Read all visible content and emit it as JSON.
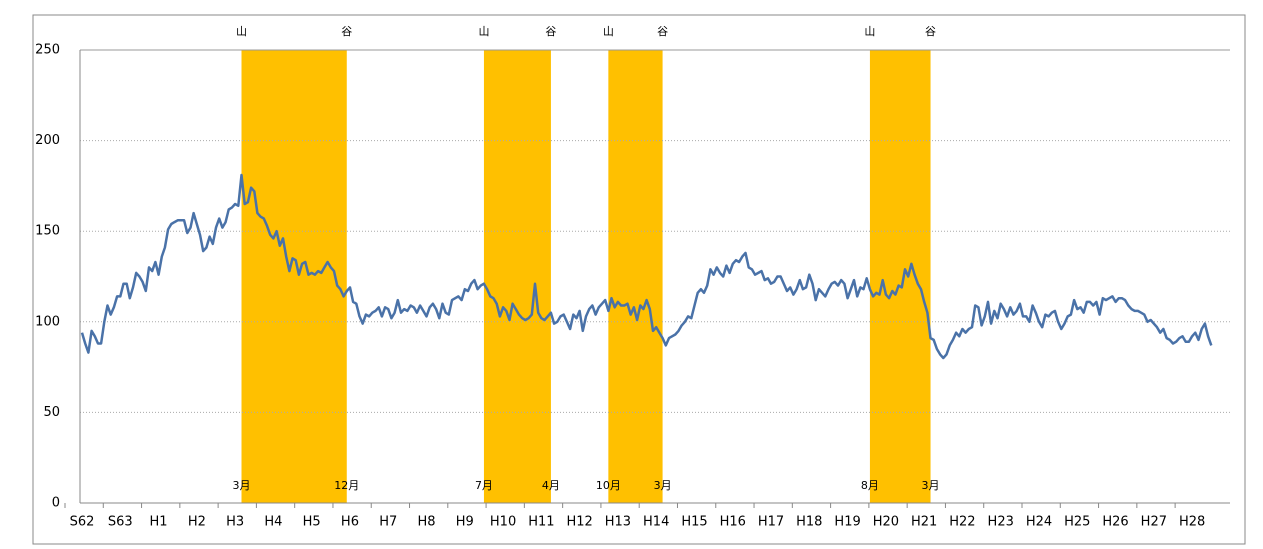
{
  "chart_data": {
    "type": "line",
    "color": "#4a72a8",
    "categories": [
      "S62",
      null,
      null,
      null,
      null,
      null,
      null,
      null,
      null,
      null,
      null,
      null,
      "S63",
      null,
      null,
      null,
      null,
      null,
      null,
      null,
      null,
      null,
      null,
      null,
      "H1",
      null,
      null,
      null,
      null,
      null,
      null,
      null,
      null,
      null,
      null,
      null,
      "H2",
      null,
      null,
      null,
      null,
      null,
      null,
      null,
      null,
      null,
      null,
      null,
      "H3",
      null,
      null,
      null,
      null,
      null,
      null,
      null,
      null,
      null,
      null,
      null,
      "H4",
      null,
      null,
      null,
      null,
      null,
      null,
      null,
      null,
      null,
      null,
      null,
      "H5",
      null,
      null,
      null,
      null,
      null,
      null,
      null,
      null,
      null,
      null,
      null,
      "H6",
      null,
      null,
      null,
      null,
      null,
      null,
      null,
      null,
      null,
      null,
      null,
      "H7",
      null,
      null,
      null,
      null,
      null,
      null,
      null,
      null,
      null,
      null,
      null,
      "H8",
      null,
      null,
      null,
      null,
      null,
      null,
      null,
      null,
      null,
      null,
      null,
      "H9",
      null,
      null,
      null,
      null,
      null,
      null,
      null,
      null,
      null,
      null,
      null,
      "H10",
      null,
      null,
      null,
      null,
      null,
      null,
      null,
      null,
      null,
      null,
      null,
      "H11",
      null,
      null,
      null,
      null,
      null,
      null,
      null,
      null,
      null,
      null,
      null,
      "H12",
      null,
      null,
      null,
      null,
      null,
      null,
      null,
      null,
      null,
      null,
      null,
      "H13",
      null,
      null,
      null,
      null,
      null,
      null,
      null,
      null,
      null,
      null,
      null,
      "H14",
      null,
      null,
      null,
      null,
      null,
      null,
      null,
      null,
      null,
      null,
      null,
      "H15",
      null,
      null,
      null,
      null,
      null,
      null,
      null,
      null,
      null,
      null,
      null,
      "H16",
      null,
      null,
      null,
      null,
      null,
      null,
      null,
      null,
      null,
      null,
      null,
      "H17",
      null,
      null,
      null,
      null,
      null,
      null,
      null,
      null,
      null,
      null,
      null,
      "H18",
      null,
      null,
      null,
      null,
      null,
      null,
      null,
      null,
      null,
      null,
      null,
      "H19",
      null,
      null,
      null,
      null,
      null,
      null,
      null,
      null,
      null,
      null,
      null,
      "H20",
      null,
      null,
      null,
      null,
      null,
      null,
      null,
      null,
      null,
      null,
      null,
      "H21",
      null,
      null,
      null,
      null,
      null,
      null,
      null,
      null,
      null,
      null,
      null,
      "H22",
      null,
      null,
      null,
      null,
      null,
      null,
      null,
      null,
      null,
      null,
      null,
      "H23",
      null,
      null,
      null,
      null,
      null,
      null,
      null,
      null,
      null,
      null,
      null,
      "H24",
      null,
      null,
      null,
      null,
      null,
      null,
      null,
      null,
      null,
      null,
      null,
      "H25",
      null,
      null,
      null,
      null,
      null,
      null,
      null,
      null,
      null,
      null,
      null,
      "H26",
      null,
      null,
      null,
      null,
      null,
      null,
      null,
      null,
      null,
      null,
      null,
      "H27",
      null,
      null,
      null,
      null,
      null,
      null,
      null,
      null,
      null,
      null,
      null,
      "H28",
      null,
      null,
      null,
      null,
      null,
      null
    ],
    "values": [
      94,
      88,
      83,
      95,
      92,
      88,
      88,
      100,
      109,
      104,
      108,
      114,
      114,
      121,
      121,
      113,
      119,
      127,
      125,
      122,
      117,
      130,
      128,
      133,
      126,
      136,
      141,
      151,
      154,
      155,
      156,
      156,
      156,
      149,
      152,
      160,
      154,
      148,
      139,
      141,
      147,
      143,
      152,
      157,
      152,
      155,
      162,
      163,
      165,
      164,
      181,
      165,
      166,
      174,
      172,
      160,
      158,
      157,
      153,
      148,
      146,
      150,
      142,
      146,
      136,
      128,
      135,
      134,
      126,
      132,
      133,
      126,
      127,
      126,
      128,
      127,
      130,
      133,
      130,
      128,
      120,
      118,
      114,
      117,
      119,
      111,
      110,
      103,
      99,
      104,
      103,
      105,
      106,
      108,
      103,
      108,
      107,
      102,
      105,
      112,
      105,
      107,
      106,
      109,
      108,
      105,
      109,
      106,
      103,
      108,
      110,
      107,
      102,
      110,
      105,
      104,
      112,
      113,
      114,
      112,
      118,
      117,
      121,
      123,
      118,
      120,
      121,
      118,
      114,
      113,
      110,
      103,
      108,
      106,
      101,
      110,
      107,
      104,
      102,
      101,
      102,
      104,
      121,
      105,
      102,
      101,
      103,
      105,
      99,
      100,
      103,
      104,
      100,
      96,
      104,
      102,
      106,
      95,
      103,
      107,
      109,
      104,
      108,
      110,
      112,
      106,
      113,
      108,
      111,
      109,
      109,
      110,
      104,
      108,
      101,
      109,
      107,
      112,
      107,
      95,
      97,
      94,
      91,
      87,
      91,
      92,
      93,
      95,
      98,
      100,
      103,
      102,
      109,
      116,
      118,
      116,
      120,
      129,
      126,
      130,
      127,
      125,
      131,
      127,
      132,
      134,
      133,
      136,
      138,
      130,
      129,
      126,
      127,
      128,
      123,
      124,
      121,
      122,
      125,
      125,
      121,
      117,
      119,
      115,
      118,
      123,
      118,
      119,
      126,
      121,
      112,
      118,
      116,
      114,
      118,
      121,
      122,
      120,
      123,
      121,
      113,
      118,
      123,
      114,
      119,
      118,
      124,
      118,
      114,
      116,
      115,
      123,
      115,
      113,
      117,
      115,
      120,
      119,
      129,
      125,
      132,
      126,
      121,
      118,
      111,
      105,
      91,
      90,
      85,
      82,
      80,
      82,
      87,
      90,
      94,
      92,
      96,
      94,
      96,
      97,
      109,
      108,
      98,
      103,
      111,
      99,
      106,
      102,
      110,
      107,
      103,
      108,
      104,
      106,
      110,
      103,
      103,
      100,
      109,
      105,
      100,
      97,
      104,
      103,
      105,
      106,
      100,
      96,
      99,
      103,
      104,
      112,
      107,
      108,
      105,
      111,
      111,
      109,
      111,
      104,
      113,
      112,
      113,
      114,
      111,
      113,
      113,
      112,
      109,
      107,
      106,
      106,
      105,
      104,
      100,
      101,
      99,
      97,
      94,
      96,
      91,
      90,
      88,
      89,
      91,
      92,
      89,
      89,
      92,
      94,
      90,
      96,
      99,
      92,
      87
    ],
    "ylim": [
      0,
      250
    ],
    "yticks": [
      0,
      50,
      100,
      150,
      200,
      250
    ],
    "grid": true,
    "band_color": "#ffc000",
    "bands": [
      {
        "start": 50,
        "end": 83,
        "peak_label": "山",
        "trough_label": "谷",
        "start_label": "3月",
        "end_label": "12月"
      },
      {
        "start": 126,
        "end": 147,
        "peak_label": "山",
        "trough_label": "谷",
        "start_label": "7月",
        "end_label": "4月"
      },
      {
        "start": 165,
        "end": 182,
        "peak_label": "山",
        "trough_label": "谷",
        "start_label": "10月",
        "end_label": "3月"
      },
      {
        "start": 247,
        "end": 266,
        "peak_label": "山",
        "trough_label": "谷",
        "start_label": "8月",
        "end_label": "3月"
      }
    ]
  }
}
